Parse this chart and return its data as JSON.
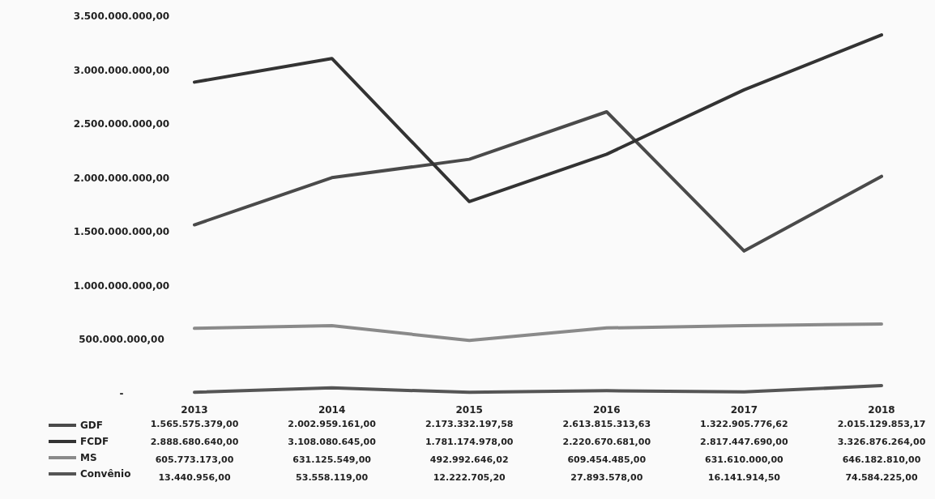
{
  "chart_data": {
    "type": "line",
    "categories": [
      "2013",
      "2014",
      "2015",
      "2016",
      "2017",
      "2018"
    ],
    "series": [
      {
        "name": "GDF",
        "color": "#4a4a4a",
        "values": [
          1565575379.0,
          2002959161.0,
          2173332197.58,
          2613815313.63,
          1322905776.62,
          2015129853.17
        ],
        "value_labels": [
          "1.565.575.379,00",
          "2.002.959.161,00",
          "2.173.332.197,58",
          "2.613.815.313,63",
          "1.322.905.776,62",
          "2.015.129.853,17"
        ]
      },
      {
        "name": "FCDF",
        "color": "#333333",
        "values": [
          2888680640.0,
          3108080645.0,
          1781174978.0,
          2220670681.0,
          2817447690.0,
          3326876264.0
        ],
        "value_labels": [
          "2.888.680.640,00",
          "3.108.080.645,00",
          "1.781.174.978,00",
          "2.220.670.681,00",
          "2.817.447.690,00",
          "3.326.876.264,00"
        ]
      },
      {
        "name": "MS",
        "color": "#8a8a8a",
        "values": [
          605773173.0,
          631125549.0,
          492992646.02,
          609454485.0,
          631610000.0,
          646182810.0
        ],
        "value_labels": [
          "605.773.173,00",
          "631.125.549,00",
          "492.992.646,02",
          "609.454.485,00",
          "631.610.000,00",
          "646.182.810,00"
        ]
      },
      {
        "name": "Convênio",
        "color": "#555555",
        "values": [
          13440956.0,
          53558119.0,
          12222705.2,
          27893578.0,
          16141914.5,
          74584225.0
        ],
        "value_labels": [
          "13.440.956,00",
          "53.558.119,00",
          "12.222.705,20",
          "27.893.578,00",
          "16.141.914,50",
          "74.584.225,00"
        ]
      }
    ],
    "ylim": [
      0,
      3500000000
    ],
    "yticks": [
      {
        "value": 0,
        "label": "-"
      },
      {
        "value": 500000000,
        "label": "500.000.000,00"
      },
      {
        "value": 1000000000,
        "label": "1.000.000.000,00"
      },
      {
        "value": 1500000000,
        "label": "1.500.000.000,00"
      },
      {
        "value": 2000000000,
        "label": "2.000.000.000,00"
      },
      {
        "value": 2500000000,
        "label": "2.500.000.000,00"
      },
      {
        "value": 3000000000,
        "label": "3.000.000.000,00"
      },
      {
        "value": 3500000000,
        "label": "3.500.000.000,00"
      }
    ],
    "grid": false,
    "legend": "bottom left",
    "marker": "none",
    "line_style": "solid"
  }
}
